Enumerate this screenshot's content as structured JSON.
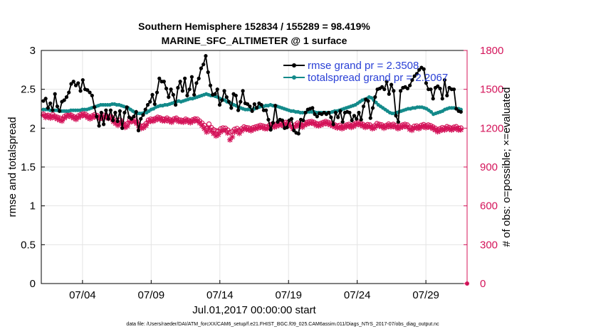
{
  "chart_data": {
    "type": "line",
    "title": "Southern Hemisphere 152834 / 155289 = 98.419%",
    "subtitle": "MARINE_SFC_ALTIMETER @ 1 surface",
    "ylabel_left": "rmse and totalspread",
    "ylabel_right": "# of obs: o=possible; ×=evaluated",
    "xlabel": "Jul.01,2017 00:00:00 start",
    "footer": "data file: /Users/raeder/DAI/ATM_forcXX/CAM6_setup/f.e21.FHIST_BGC.f09_025.CAM6assim.011/Diags_NTrS_2017-07/obs_diag_output.nc",
    "x_range_days": [
      1,
      32
    ],
    "x_ticks": [
      {
        "day": 4,
        "label": "07/04"
      },
      {
        "day": 9,
        "label": "07/09"
      },
      {
        "day": 14,
        "label": "07/14"
      },
      {
        "day": 19,
        "label": "07/19"
      },
      {
        "day": 24,
        "label": "07/24"
      },
      {
        "day": 29,
        "label": "07/29"
      }
    ],
    "ylim_left": [
      0,
      3
    ],
    "yticks_left": [
      "0",
      "0.5",
      "1",
      "1.5",
      "2",
      "2.5",
      "3"
    ],
    "ylim_right": [
      0,
      1800
    ],
    "yticks_right": [
      "0",
      "300",
      "600",
      "900",
      "1200",
      "1500",
      "1800"
    ],
    "grid": true,
    "legend_position": "top-right",
    "colors": {
      "rmse": "#000000",
      "spread": "#138a8a",
      "obs": "#d4145a"
    },
    "series": [
      {
        "name": "rmse grand pr = 2.3508",
        "axis": "left",
        "values": [
          2.35,
          2.38,
          2.26,
          2.32,
          2.23,
          2.44,
          2.28,
          2.22,
          2.34,
          2.36,
          2.4,
          2.46,
          2.57,
          2.6,
          2.55,
          2.58,
          2.48,
          2.62,
          2.5,
          2.49,
          2.46,
          2.42,
          2.27,
          2.15,
          2.03,
          2.2,
          2.05,
          2.23,
          2.12,
          2.23,
          2.1,
          2.2,
          2.09,
          2.22,
          2.0,
          2.2,
          2.27,
          2.14,
          2.12,
          2.15,
          2.21,
          1.97,
          2.12,
          2.17,
          2.24,
          2.3,
          2.34,
          2.43,
          2.31,
          2.46,
          2.64,
          2.6,
          2.6,
          2.51,
          2.4,
          2.5,
          2.43,
          2.3,
          2.52,
          2.6,
          2.48,
          2.64,
          2.42,
          2.5,
          2.66,
          2.43,
          2.58,
          2.64,
          2.77,
          2.82,
          2.93,
          2.72,
          2.55,
          2.43,
          2.44,
          2.5,
          2.3,
          2.36,
          2.48,
          2.4,
          2.34,
          2.26,
          2.44,
          2.42,
          2.23,
          2.34,
          2.48,
          2.32,
          2.31,
          2.28,
          2.22,
          2.31,
          2.26,
          2.32,
          2.3,
          2.23,
          2.23,
          2.11,
          1.98,
          2.07,
          2.29,
          2.08,
          2.11,
          2.1,
          2.0,
          2.01,
          2.1,
          2.12,
          1.97,
          1.94,
          1.93,
          2.11,
          2.1,
          2.2,
          2.24,
          2.25,
          2.26,
          2.18,
          2.15,
          2.19,
          2.18,
          2.2,
          2.18,
          2.2,
          2.14,
          2.05,
          2.2,
          2.14,
          2.22,
          2.08,
          2.2,
          2.21,
          2.2,
          2.1,
          2.16,
          2.12,
          2.2,
          2.11,
          2.28,
          2.37,
          2.35,
          2.13,
          2.26,
          2.4,
          2.5,
          2.51,
          2.53,
          2.5,
          2.6,
          2.44,
          2.56,
          2.48,
          2.16,
          2.08,
          2.48,
          2.52,
          2.53,
          2.51,
          2.55,
          2.62,
          2.67,
          2.7,
          2.75,
          2.78,
          2.76,
          2.58,
          2.5,
          2.5,
          2.38,
          2.52,
          2.54,
          2.51,
          2.38,
          2.62,
          2.42,
          2.52,
          2.5,
          2.5,
          2.25,
          2.22,
          2.21
        ]
      },
      {
        "name": "totalspread grand pr = 2.2067",
        "axis": "left",
        "values": [
          2.24,
          2.24,
          2.24,
          2.23,
          2.23,
          2.23,
          2.23,
          2.22,
          2.22,
          2.22,
          2.22,
          2.22,
          2.23,
          2.23,
          2.23,
          2.23,
          2.23,
          2.24,
          2.24,
          2.24,
          2.25,
          2.26,
          2.27,
          2.28,
          2.29,
          2.3,
          2.3,
          2.3,
          2.3,
          2.3,
          2.31,
          2.31,
          2.3,
          2.3,
          2.29,
          2.28,
          2.27,
          2.26,
          2.24,
          2.22,
          2.2,
          2.19,
          2.19,
          2.19,
          2.2,
          2.2,
          2.22,
          2.24,
          2.25,
          2.27,
          2.28,
          2.29,
          2.29,
          2.3,
          2.3,
          2.31,
          2.32,
          2.33,
          2.34,
          2.35,
          2.34,
          2.35,
          2.36,
          2.37,
          2.38,
          2.38,
          2.39,
          2.4,
          2.41,
          2.42,
          2.43,
          2.44,
          2.43,
          2.42,
          2.42,
          2.41,
          2.4,
          2.38,
          2.37,
          2.36,
          2.34,
          2.33,
          2.32,
          2.3,
          2.29,
          2.27,
          2.26,
          2.25,
          2.24,
          2.24,
          2.24,
          2.24,
          2.25,
          2.26,
          2.27,
          2.28,
          2.28,
          2.29,
          2.29,
          2.3,
          2.29,
          2.28,
          2.28,
          2.27,
          2.26,
          2.25,
          2.24,
          2.23,
          2.22,
          2.22,
          2.21,
          2.21,
          2.2,
          2.2,
          2.2,
          2.21,
          2.21,
          2.21,
          2.21,
          2.2,
          2.2,
          2.2,
          2.2,
          2.2,
          2.2,
          2.2,
          2.21,
          2.22,
          2.22,
          2.23,
          2.24,
          2.25,
          2.26,
          2.27,
          2.28,
          2.29,
          2.3,
          2.32,
          2.34,
          2.36,
          2.37,
          2.38,
          2.4,
          2.39,
          2.36,
          2.33,
          2.3,
          2.28,
          2.26,
          2.24,
          2.22,
          2.2,
          2.19,
          2.19,
          2.2,
          2.21,
          2.22,
          2.23,
          2.24,
          2.25,
          2.25,
          2.26,
          2.26,
          2.27,
          2.27,
          2.27,
          2.26,
          2.25,
          2.23,
          2.21,
          2.18,
          2.19,
          2.2,
          2.21,
          2.22,
          2.24,
          2.25,
          2.26,
          2.26,
          2.26,
          2.25,
          2.25,
          2.24
        ]
      },
      {
        "name": "possible",
        "axis": "right",
        "marker": "o",
        "values": [
          1310,
          1295,
          1300,
          1290,
          1305,
          1292,
          1285,
          1278,
          1270,
          1290,
          1302,
          1310,
          1300,
          1290,
          1282,
          1295,
          1305,
          1312,
          1308,
          1295,
          1285,
          1295,
          1305,
          1298,
          1286,
          1292,
          1300,
          1295,
          1288,
          1290,
          1268,
          1255,
          1242,
          1262,
          1240,
          1225,
          1235,
          1262,
          1270,
          1265,
          1250,
          1225,
          1215,
          1220,
          1235,
          1262,
          1270,
          1268,
          1275,
          1285,
          1280,
          1272,
          1270,
          1278,
          1268,
          1260,
          1272,
          1278,
          1265,
          1262,
          1258,
          1270,
          1262,
          1255,
          1265,
          1272,
          1270,
          1255,
          1240,
          1222,
          1200,
          1232,
          1205,
          1188,
          1180,
          1178,
          1195,
          1202,
          1200,
          1186,
          1168,
          1175,
          1192,
          1198,
          1182,
          1195,
          1210,
          1205,
          1202,
          1195,
          1205,
          1210,
          1215,
          1222,
          1218,
          1212,
          1210,
          1225,
          1230,
          1222,
          1230,
          1238,
          1240,
          1232,
          1245,
          1242,
          1230,
          1210,
          1225,
          1240,
          1232,
          1222,
          1238,
          1245,
          1250,
          1252,
          1246,
          1236,
          1232,
          1238,
          1245,
          1252,
          1246,
          1240,
          1232,
          1225,
          1218,
          1222,
          1210,
          1218,
          1225,
          1230,
          1220,
          1228,
          1240,
          1246,
          1238,
          1230,
          1220,
          1228,
          1225,
          1210,
          1218,
          1236,
          1230,
          1226,
          1215,
          1222,
          1232,
          1224,
          1230,
          1222,
          1210,
          1218,
          1225,
          1230,
          1225,
          1208,
          1200,
          1215,
          1218,
          1210,
          1222,
          1228,
          1218,
          1225,
          1220,
          1210,
          1200,
          1188,
          1196,
          1205,
          1200,
          1212,
          1206,
          1200,
          1208,
          1212,
          1200,
          1202
        ]
      },
      {
        "name": "evaluated",
        "axis": "right",
        "marker": "x",
        "values": [
          1300,
          1283,
          1290,
          1278,
          1292,
          1280,
          1271,
          1262,
          1255,
          1278,
          1290,
          1298,
          1288,
          1278,
          1268,
          1282,
          1292,
          1300,
          1296,
          1282,
          1272,
          1282,
          1292,
          1285,
          1272,
          1278,
          1285,
          1282,
          1276,
          1276,
          1250,
          1236,
          1222,
          1246,
          1220,
          1206,
          1216,
          1246,
          1254,
          1250,
          1236,
          1206,
          1198,
          1204,
          1220,
          1248,
          1256,
          1254,
          1262,
          1272,
          1268,
          1258,
          1256,
          1264,
          1254,
          1246,
          1260,
          1266,
          1252,
          1250,
          1246,
          1258,
          1250,
          1242,
          1252,
          1260,
          1256,
          1240,
          1220,
          1196,
          1170,
          1200,
          1176,
          1158,
          1140,
          1150,
          1172,
          1184,
          1184,
          1162,
          1110,
          1132,
          1170,
          1180,
          1160,
          1178,
          1196,
          1190,
          1188,
          1180,
          1190,
          1196,
          1200,
          1208,
          1204,
          1196,
          1196,
          1212,
          1216,
          1208,
          1216,
          1224,
          1226,
          1218,
          1232,
          1228,
          1216,
          1196,
          1212,
          1226,
          1218,
          1208,
          1224,
          1232,
          1238,
          1240,
          1234,
          1222,
          1218,
          1224,
          1232,
          1240,
          1232,
          1226,
          1218,
          1210,
          1202,
          1206,
          1196,
          1204,
          1212,
          1216,
          1206,
          1214,
          1226,
          1232,
          1224,
          1216,
          1206,
          1214,
          1210,
          1196,
          1202,
          1222,
          1216,
          1212,
          1200,
          1208,
          1218,
          1210,
          1216,
          1208,
          1196,
          1204,
          1210,
          1216,
          1210,
          1192,
          1184,
          1200,
          1204,
          1196,
          1208,
          1214,
          1204,
          1210,
          1206,
          1196,
          1186,
          1172,
          1180,
          1190,
          1186,
          1198,
          1192,
          1186,
          1194,
          1198,
          1186,
          1188
        ]
      }
    ],
    "legend": [
      {
        "label": "rmse grand pr = 2.3508",
        "series": 0
      },
      {
        "label": "totalspread grand pr = 2.2067",
        "series": 1
      }
    ]
  }
}
